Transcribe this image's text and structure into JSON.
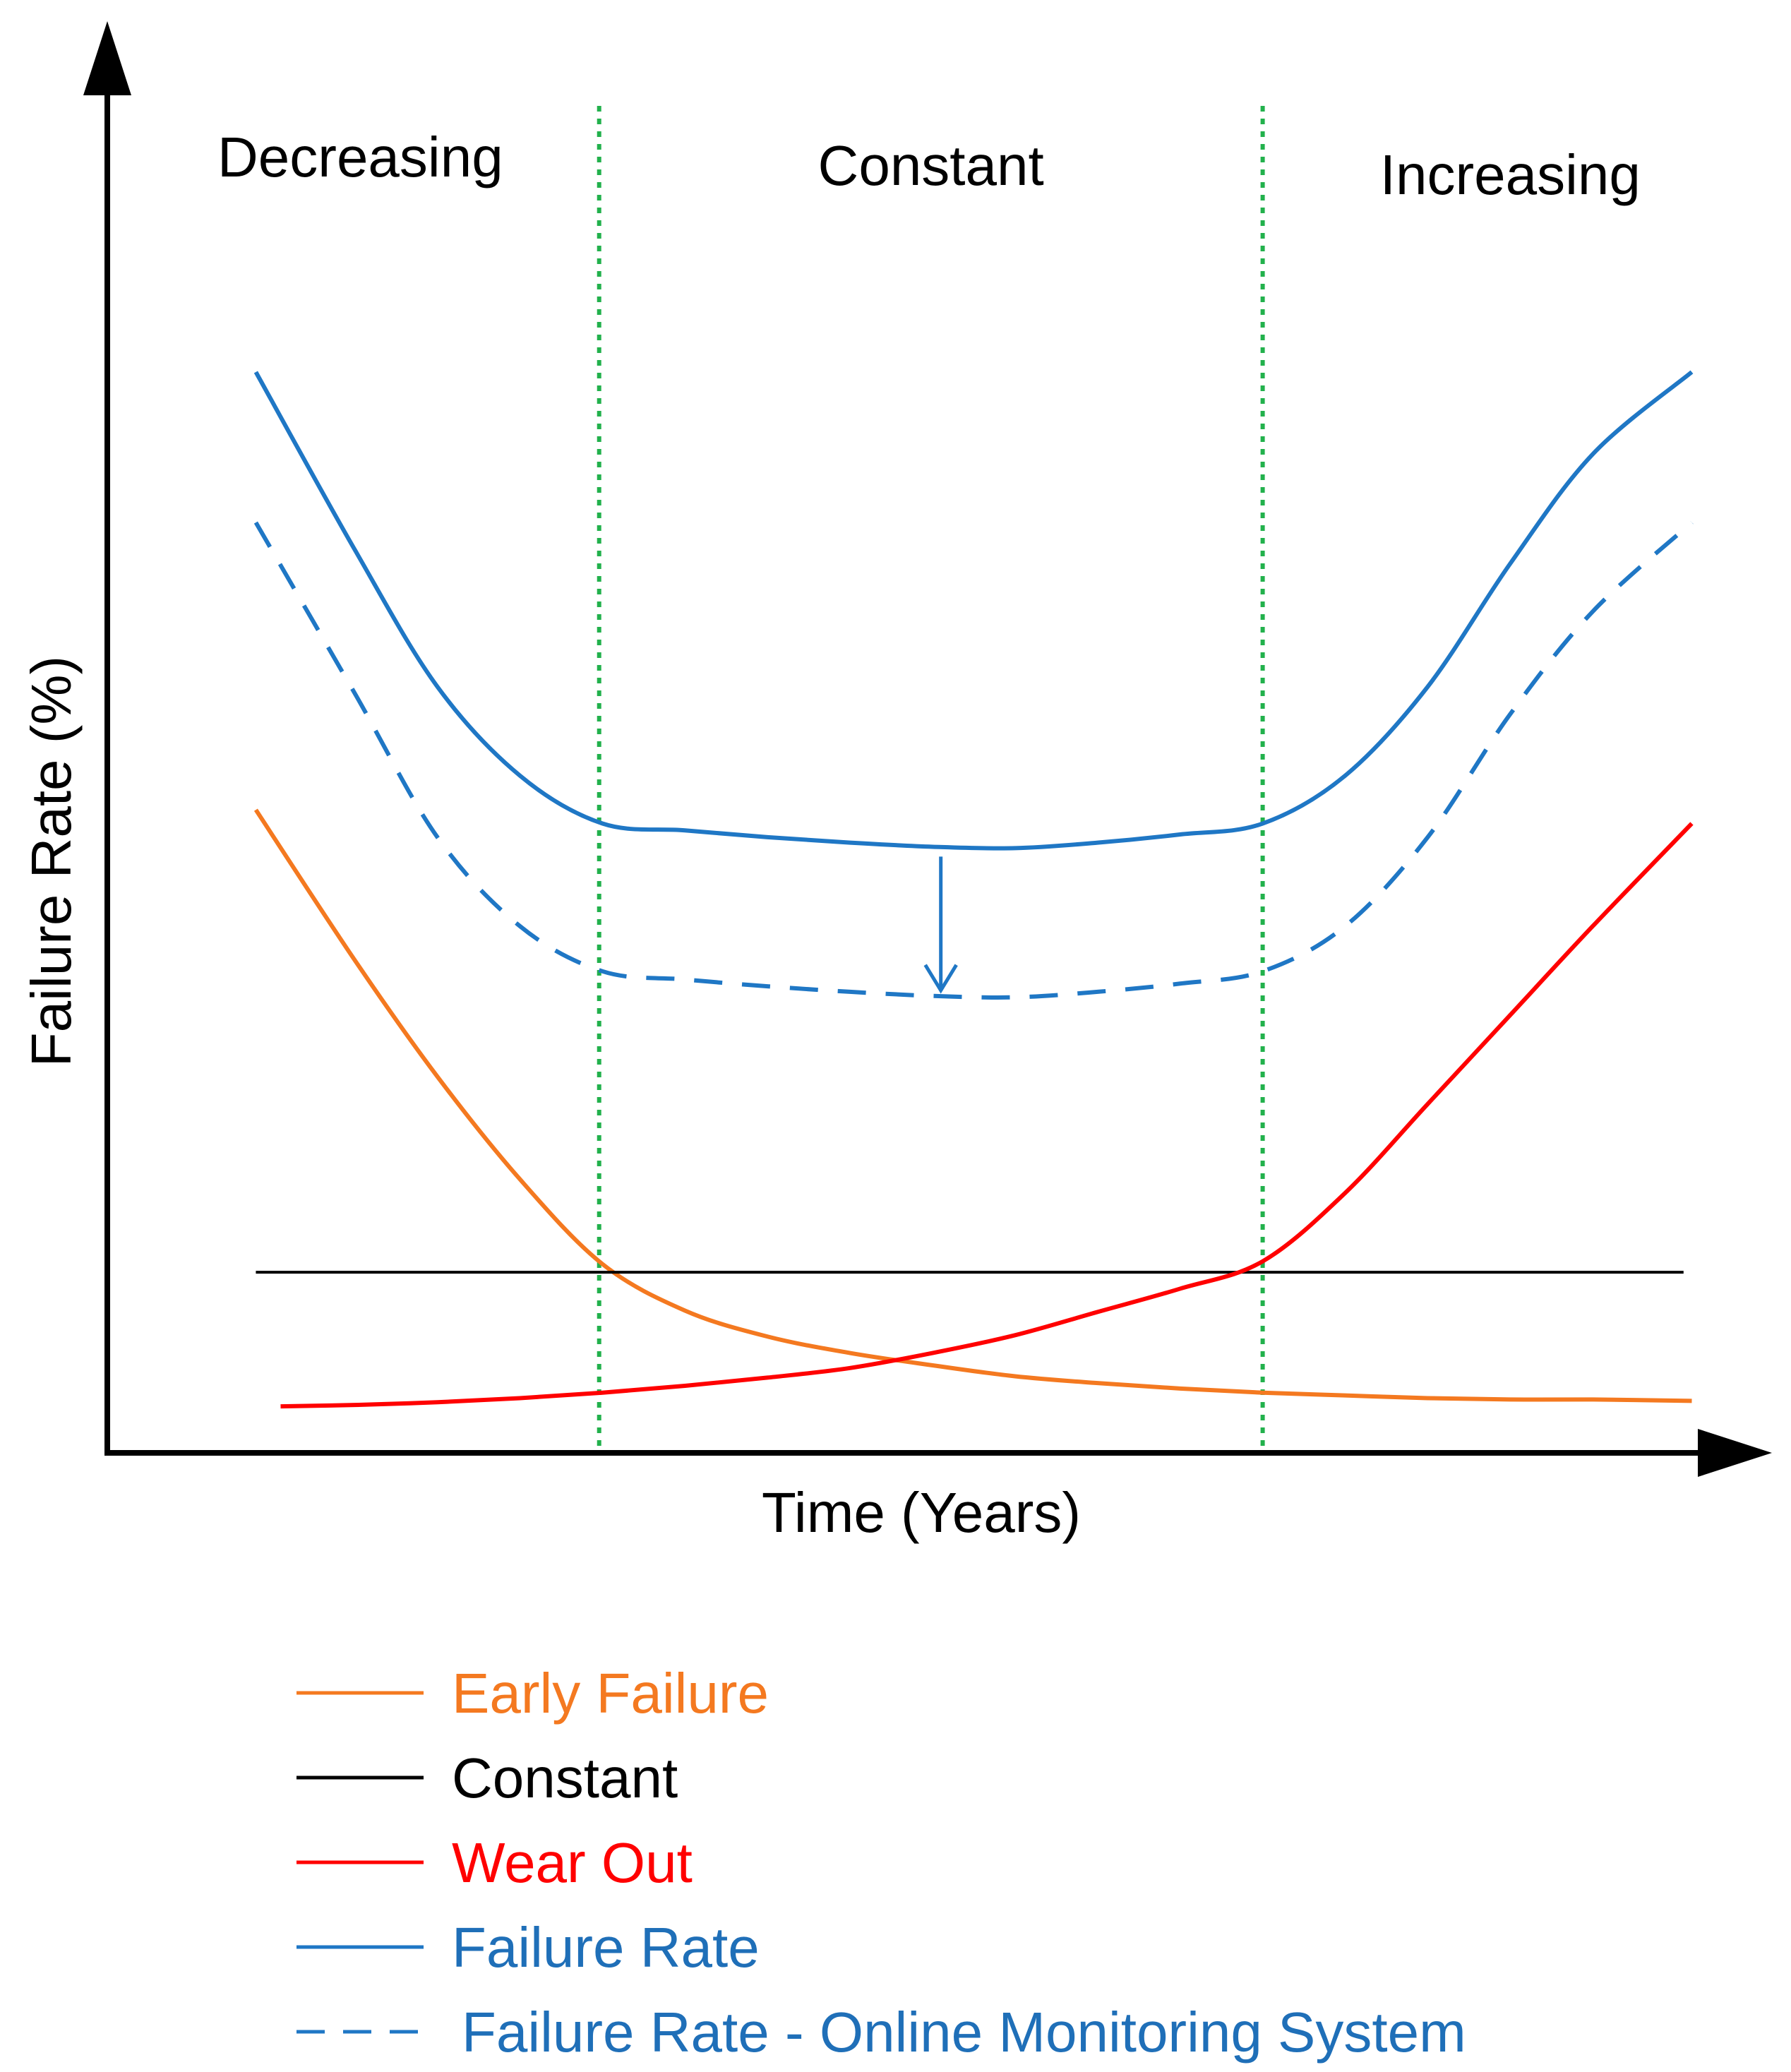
{
  "chart_data": {
    "type": "line",
    "title": "",
    "xlabel": "Time (Years)",
    "ylabel": "Failure Rate (%)",
    "axis_ticks": "none",
    "xlim": [
      0,
      100
    ],
    "ylim": [
      0,
      100
    ],
    "regions": [
      {
        "label": "Decreasing",
        "x_start": 0,
        "x_end": 29.8
      },
      {
        "label": "Constant",
        "x_start": 29.8,
        "x_end": 70.0
      },
      {
        "label": "Increasing",
        "x_start": 70.0,
        "x_end": 100
      }
    ],
    "region_boundaries": {
      "x": [
        29.8,
        70.0
      ],
      "style": "dotted",
      "color": "#22b14c"
    },
    "x": [
      9.0,
      15.0,
      20.0,
      25.0,
      30.0,
      35.0,
      40.0,
      45.0,
      50.0,
      55.0,
      60.0,
      65.0,
      70.0,
      75.0,
      80.0,
      85.0,
      90.0,
      96.0
    ],
    "series": [
      {
        "name": "Early Failure",
        "color": "#f47920",
        "dash": "solid",
        "values": [
          47.0,
          36.0,
          27.5,
          20.0,
          13.8,
          10.4,
          8.5,
          7.3,
          6.4,
          5.6,
          5.1,
          4.7,
          4.4,
          4.2,
          4.0,
          3.9,
          3.9,
          3.8
        ]
      },
      {
        "name": "Constant",
        "color": "#000000",
        "dash": "solid",
        "x": [
          9.0,
          95.5
        ],
        "values": [
          13.2,
          13.2
        ]
      },
      {
        "name": "Wear Out",
        "color": "#ff0000",
        "dash": "solid",
        "x": [
          10.5,
          15.0,
          20.0,
          25.0,
          30.0,
          35.0,
          40.0,
          45.0,
          50.0,
          55.0,
          60.0,
          65.0,
          70.0,
          75.0,
          80.0,
          85.0,
          90.0,
          96.0
        ],
        "values": [
          3.4,
          3.5,
          3.7,
          4.0,
          4.4,
          4.9,
          5.5,
          6.2,
          7.3,
          8.6,
          10.3,
          12.0,
          14.0,
          19.0,
          25.5,
          32.0,
          38.5,
          46.0
        ]
      },
      {
        "name": "Failure Rate",
        "color": "#1f77c5",
        "dash": "solid",
        "values": [
          79.0,
          66.0,
          56.0,
          49.5,
          46.0,
          45.5,
          45.0,
          44.6,
          44.3,
          44.2,
          44.6,
          45.2,
          46.0,
          49.5,
          56.0,
          65.0,
          73.0,
          79.0
        ]
      },
      {
        "name": "Failure Rate - Online Monitoring System",
        "color": "#1f77c5",
        "dash": "dashed",
        "values": [
          68.0,
          55.5,
          45.0,
          38.5,
          35.2,
          34.6,
          34.1,
          33.7,
          33.4,
          33.3,
          33.7,
          34.3,
          35.2,
          38.5,
          45.0,
          54.0,
          61.5,
          68.0
        ]
      }
    ],
    "annotations": [
      {
        "type": "arrow",
        "x": 50.5,
        "from_y": 44.2,
        "to_y": 33.6,
        "color": "#1f77c5"
      }
    ],
    "grid": false,
    "legend_position": "bottom-left"
  }
}
